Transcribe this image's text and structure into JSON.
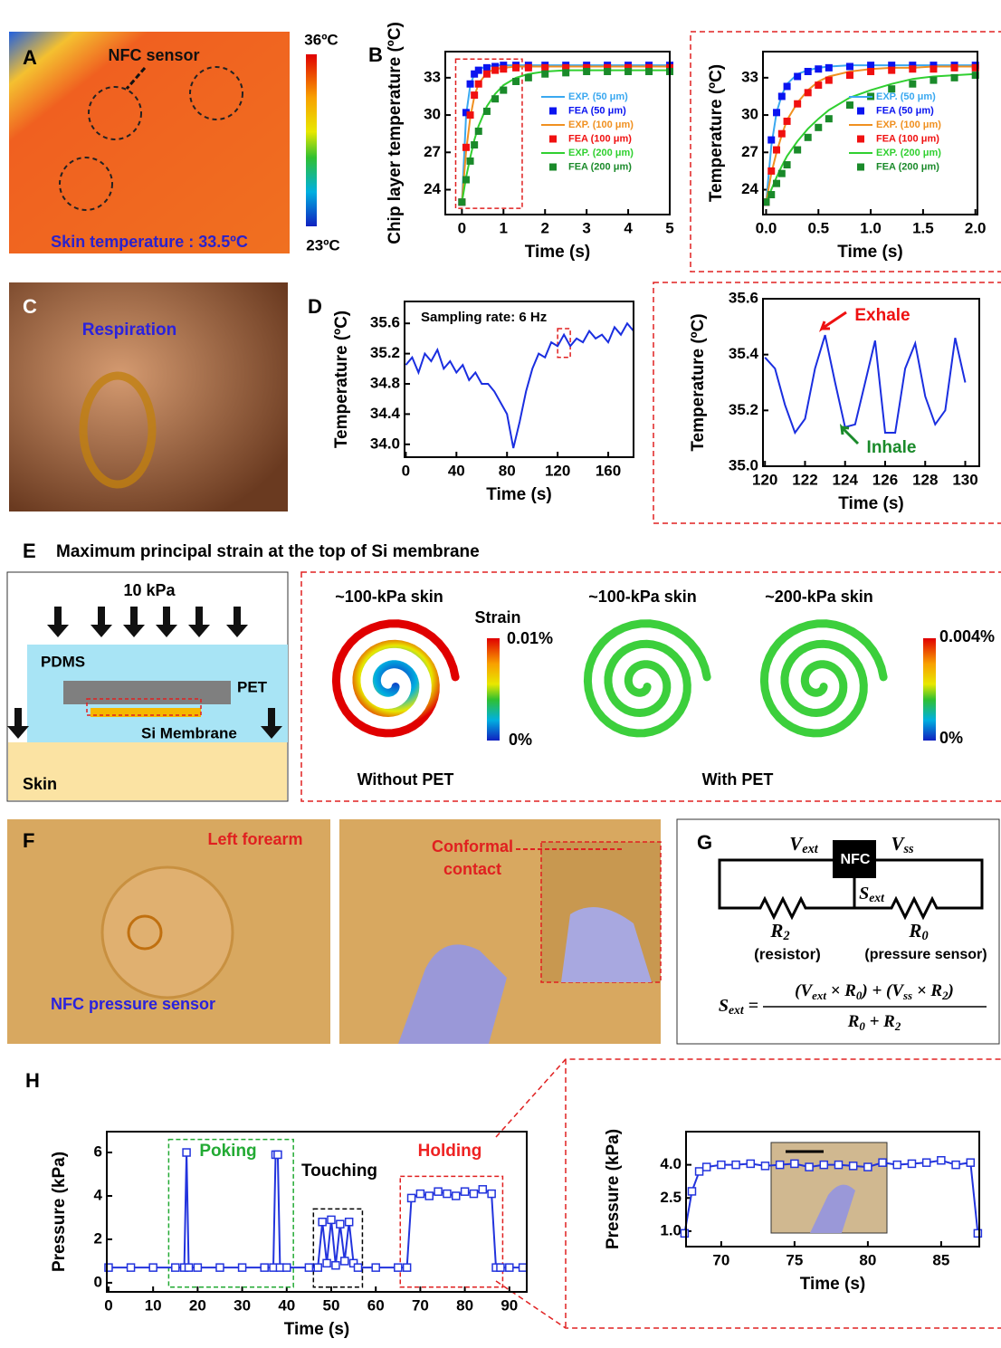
{
  "figure": {
    "panel_labels": [
      "A",
      "B",
      "C",
      "D",
      "E",
      "F",
      "G",
      "H"
    ],
    "thermal": {
      "sensor_label": "NFC sensor",
      "skin_temperature": "Skin temperature : 33.5ºC",
      "colorbar_max": "36ºC",
      "colorbar_min": "23ºC"
    },
    "respiration": {
      "label": "Respiration"
    },
    "strain": {
      "title": "Maximum principal strain at the top of Si membrane",
      "pressure": "10 kPa",
      "layers": [
        "PDMS",
        "PET",
        "Si Membrane",
        "Skin"
      ],
      "cases": [
        "~100-kPa skin",
        "~100-kPa skin",
        "~200-kPa skin"
      ],
      "colorbar_title": "Strain",
      "colorbar_left": [
        "0.01%",
        "0%"
      ],
      "colorbar_right": [
        "0.004%",
        "0%"
      ],
      "groups": [
        "Without PET",
        "With PET"
      ]
    },
    "pressure_photos": {
      "location": "Left forearm",
      "sensor": "NFC pressure sensor",
      "contact": [
        "Conformal",
        "contact"
      ]
    },
    "circuit": {
      "v_ext": [
        "V",
        "ext"
      ],
      "v_ss": [
        "V",
        "ss"
      ],
      "chip": "NFC",
      "s_ext": [
        "S",
        "ext"
      ],
      "r2": [
        "R",
        "2"
      ],
      "r0": [
        "R",
        "0"
      ],
      "r2_role": "(resistor)",
      "r0_role": "(pressure sensor)",
      "lhs": [
        "S",
        "ext",
        " ="
      ],
      "numerator": [
        "(V",
        "ext",
        " × R",
        "0",
        ") + (V",
        "ss",
        " × R",
        "2",
        ")"
      ],
      "denominator": [
        "R",
        "0",
        " + R",
        "2"
      ]
    }
  },
  "chart_data": [
    {
      "type": "line",
      "xlabel": "Time (s)",
      "ylabel": "Chip layer temperature (ºC)",
      "xlim": [
        -0.4,
        5.0
      ],
      "ylim": [
        22,
        35.1
      ],
      "xticks": [
        0,
        1,
        2,
        3,
        4,
        5
      ],
      "yticks": [
        24,
        27,
        30,
        33
      ],
      "legend": "center right",
      "x": [
        0,
        0.1,
        0.2,
        0.3,
        0.4,
        0.6,
        0.8,
        1.0,
        1.3,
        1.6,
        2,
        2.5,
        3,
        3.5,
        4,
        4.5,
        5
      ],
      "series": [
        {
          "name": "EXP. (50 μm)",
          "color": "#3aa8f0",
          "mode": "line",
          "values": [
            23.0,
            30.0,
            32.4,
            33.3,
            33.7,
            33.9,
            34.0,
            34.0,
            34.0,
            34.0,
            34.0,
            34.0,
            34.0,
            34.0,
            34.0,
            34.0,
            34.0
          ]
        },
        {
          "name": "FEA (50 μm)",
          "color": "#0a14f0",
          "mode": "markers",
          "values": [
            23.0,
            30.2,
            32.5,
            33.3,
            33.6,
            33.8,
            33.9,
            34.0,
            34.0,
            34.0,
            34.0,
            34.0,
            34.0,
            34.0,
            34.0,
            34.0,
            34.0
          ]
        },
        {
          "name": "EXP. (100 μm)",
          "color": "#f09020",
          "mode": "line",
          "values": [
            23.0,
            27.1,
            29.8,
            31.5,
            32.5,
            33.4,
            33.7,
            33.8,
            33.9,
            33.9,
            33.9,
            33.9,
            33.9,
            33.9,
            33.9,
            33.9,
            33.9
          ]
        },
        {
          "name": "FEA (100 μm)",
          "color": "#f01010",
          "mode": "markers",
          "values": [
            23.0,
            27.4,
            30.0,
            31.6,
            32.5,
            33.3,
            33.6,
            33.7,
            33.8,
            33.8,
            33.8,
            33.8,
            33.8,
            33.8,
            33.8,
            33.8,
            33.8
          ]
        },
        {
          "name": "EXP. (200 μm)",
          "color": "#30d030",
          "mode": "line",
          "values": [
            23.0,
            25.0,
            26.6,
            28.0,
            29.1,
            30.7,
            31.7,
            32.4,
            33.0,
            33.3,
            33.5,
            33.6,
            33.6,
            33.6,
            33.6,
            33.6,
            33.6
          ]
        },
        {
          "name": "FEA (200 μm)",
          "color": "#1a8a2a",
          "mode": "markers",
          "values": [
            23.0,
            24.8,
            26.3,
            27.6,
            28.7,
            30.3,
            31.3,
            32.0,
            32.7,
            33.0,
            33.3,
            33.4,
            33.5,
            33.5,
            33.5,
            33.5,
            33.5
          ]
        }
      ]
    },
    {
      "type": "line",
      "xlabel": "Time (s)",
      "ylabel": "Temperature (ºC)",
      "xlim": [
        -0.03,
        2.02
      ],
      "ylim": [
        22,
        35.1
      ],
      "xticks": [
        {
          "value": 0,
          "label": "0.0"
        },
        0.5,
        {
          "value": 1,
          "label": "1.0"
        },
        1.5,
        {
          "value": 2,
          "label": "2.0"
        }
      ],
      "yticks": [
        24,
        27,
        30,
        33
      ],
      "legend": "center right",
      "x": [
        0,
        0.05,
        0.1,
        0.15,
        0.2,
        0.3,
        0.4,
        0.5,
        0.6,
        0.8,
        1.0,
        1.2,
        1.4,
        1.6,
        1.8,
        2.0
      ],
      "series": [
        {
          "name": "EXP. (50 μm)",
          "color": "#3aa8f0",
          "mode": "line",
          "values": [
            23.0,
            27.5,
            30.2,
            31.6,
            32.5,
            33.3,
            33.6,
            33.8,
            33.9,
            34.0,
            34.0,
            34.0,
            34.0,
            34.0,
            34.0,
            34.0
          ]
        },
        {
          "name": "FEA (50 μm)",
          "color": "#0a14f0",
          "mode": "markers",
          "values": [
            23.0,
            28.0,
            30.2,
            31.5,
            32.3,
            33.1,
            33.5,
            33.7,
            33.8,
            33.9,
            34.0,
            34.0,
            34.0,
            34.0,
            34.0,
            34.0
          ]
        },
        {
          "name": "EXP. (100 μm)",
          "color": "#f09020",
          "mode": "line",
          "values": [
            23.0,
            25.3,
            27.0,
            28.4,
            29.6,
            31.0,
            32.0,
            32.7,
            33.1,
            33.5,
            33.7,
            33.8,
            33.8,
            33.9,
            33.9,
            33.9
          ]
        },
        {
          "name": "FEA (100 μm)",
          "color": "#f01010",
          "mode": "markers",
          "values": [
            23.0,
            25.5,
            27.2,
            28.5,
            29.5,
            30.9,
            31.8,
            32.4,
            32.8,
            33.2,
            33.5,
            33.6,
            33.7,
            33.7,
            33.8,
            33.8
          ]
        },
        {
          "name": "EXP. (200 μm)",
          "color": "#30d030",
          "mode": "line",
          "values": [
            23.0,
            24.0,
            25.0,
            25.9,
            26.7,
            27.9,
            28.9,
            29.7,
            30.4,
            31.4,
            32.0,
            32.5,
            32.9,
            33.1,
            33.2,
            33.3
          ]
        },
        {
          "name": "FEA (200 μm)",
          "color": "#1a8a2a",
          "mode": "markers",
          "values": [
            23.0,
            23.6,
            24.5,
            25.3,
            26.0,
            27.2,
            28.2,
            29.0,
            29.7,
            30.8,
            31.5,
            32.1,
            32.5,
            32.8,
            33.0,
            33.2
          ]
        }
      ]
    },
    {
      "type": "line",
      "xlabel": "Time (s)",
      "ylabel": "Temperature (ºC)",
      "xlim": [
        -1,
        180
      ],
      "ylim": [
        33.83,
        35.89
      ],
      "xticks": [
        0,
        40,
        80,
        120,
        160
      ],
      "yticks": [
        {
          "value": 34.0,
          "label": "34.0"
        },
        34.4,
        34.8,
        35.2,
        35.6
      ],
      "annotations": [
        {
          "text": "Sampling rate: 6 Hz",
          "color": "#000000"
        }
      ],
      "x": [
        0,
        5,
        10,
        15,
        20,
        25,
        30,
        35,
        40,
        45,
        50,
        55,
        60,
        65,
        70,
        75,
        80,
        85,
        90,
        95,
        100,
        105,
        110,
        115,
        120,
        125,
        130,
        135,
        140,
        145,
        150,
        155,
        160,
        165,
        170,
        175,
        180
      ],
      "series": [
        {
          "color": "#1a2ee0",
          "mode": "line",
          "values": [
            35.05,
            35.15,
            34.95,
            35.2,
            35.1,
            35.25,
            35.0,
            35.1,
            34.95,
            35.05,
            34.85,
            34.95,
            34.8,
            34.8,
            34.7,
            34.55,
            34.4,
            33.95,
            34.3,
            34.7,
            35.0,
            35.2,
            35.15,
            35.35,
            35.3,
            35.45,
            35.3,
            35.4,
            35.35,
            35.5,
            35.4,
            35.45,
            35.35,
            35.55,
            35.45,
            35.6,
            35.5
          ]
        }
      ]
    },
    {
      "type": "line",
      "xlabel": "Time (s)",
      "ylabel": "Temperature (ºC)",
      "xlim": [
        119.9,
        130.7
      ],
      "ylim": [
        35.0,
        35.6
      ],
      "xticks": [
        120,
        122,
        124,
        126,
        128,
        130
      ],
      "yticks": [
        {
          "value": 35.0,
          "label": "35.0"
        },
        35.2,
        35.4,
        35.6
      ],
      "annotations": [
        {
          "text": "Exhale",
          "color": "#ee1111"
        },
        {
          "text": "Inhale",
          "color": "#1a8a2a"
        }
      ],
      "x": [
        120,
        120.5,
        121,
        121.5,
        122,
        122.5,
        123,
        123.5,
        124,
        124.5,
        125,
        125.5,
        126,
        126.5,
        127,
        127.5,
        128,
        128.5,
        129,
        129.5,
        130
      ],
      "series": [
        {
          "color": "#1a2ee0",
          "mode": "line",
          "values": [
            35.39,
            35.35,
            35.22,
            35.12,
            35.17,
            35.35,
            35.47,
            35.3,
            35.14,
            35.15,
            35.3,
            35.45,
            35.12,
            35.12,
            35.35,
            35.44,
            35.25,
            35.15,
            35.2,
            35.46,
            35.3
          ]
        }
      ]
    },
    {
      "type": "line",
      "xlabel": "Time (s)",
      "ylabel": "Pressure (kPa)",
      "xlim": [
        -0.4,
        93.9
      ],
      "ylim": [
        -0.42,
        6.96
      ],
      "xticks": [
        0,
        10,
        20,
        30,
        40,
        50,
        60,
        70,
        80,
        90
      ],
      "yticks": [
        0,
        2,
        4,
        6
      ],
      "annotations": [
        {
          "text": "Poking",
          "color": "#22aa33"
        },
        {
          "text": "Touching",
          "color": "#000000"
        },
        {
          "text": "Holding",
          "color": "#ee2222"
        }
      ],
      "x": [
        0,
        5,
        10,
        15,
        17,
        17.5,
        18,
        20,
        25,
        30,
        35,
        37,
        37.5,
        38,
        38.5,
        40,
        45,
        47,
        48,
        49,
        50,
        51,
        52,
        53,
        54,
        55,
        56,
        60,
        65,
        67,
        68,
        70,
        72,
        74,
        76,
        78,
        80,
        82,
        84,
        86,
        87,
        88,
        90,
        93
      ],
      "series": [
        {
          "color": "#2233dd",
          "mode": "line+open-markers",
          "values": [
            0.7,
            0.7,
            0.7,
            0.7,
            0.7,
            6.0,
            0.7,
            0.7,
            0.7,
            0.7,
            0.7,
            0.7,
            5.9,
            5.9,
            0.7,
            0.7,
            0.7,
            0.7,
            2.8,
            0.9,
            2.9,
            0.8,
            2.7,
            1.0,
            2.8,
            0.9,
            0.7,
            0.7,
            0.7,
            0.7,
            3.9,
            4.1,
            4.0,
            4.2,
            4.1,
            4.0,
            4.2,
            4.1,
            4.3,
            4.1,
            0.7,
            0.7,
            0.7,
            0.7
          ]
        }
      ]
    },
    {
      "type": "line",
      "xlabel": "Time (s)",
      "ylabel": "Pressure (kPa)",
      "xlim": [
        67.6,
        87.6
      ],
      "ylim": [
        0.3,
        5.5
      ],
      "xticks": [
        70,
        75,
        80,
        85
      ],
      "yticks": [
        {
          "value": 1.0,
          "label": "1.0"
        },
        2.5,
        {
          "value": 4.0,
          "label": "4.0"
        }
      ],
      "x": [
        67.5,
        68,
        68.5,
        69,
        70,
        71,
        72,
        73,
        74,
        75,
        76,
        77,
        78,
        79,
        80,
        81,
        82,
        83,
        84,
        85,
        86,
        87,
        87.5
      ],
      "series": [
        {
          "color": "#2233dd",
          "mode": "line+open-markers",
          "values": [
            0.9,
            2.8,
            3.7,
            3.9,
            4.0,
            4.0,
            4.05,
            3.95,
            4.0,
            4.05,
            3.9,
            4.0,
            4.0,
            3.95,
            3.9,
            4.1,
            4.0,
            4.05,
            4.1,
            4.2,
            4.0,
            4.1,
            0.9
          ]
        }
      ]
    }
  ]
}
